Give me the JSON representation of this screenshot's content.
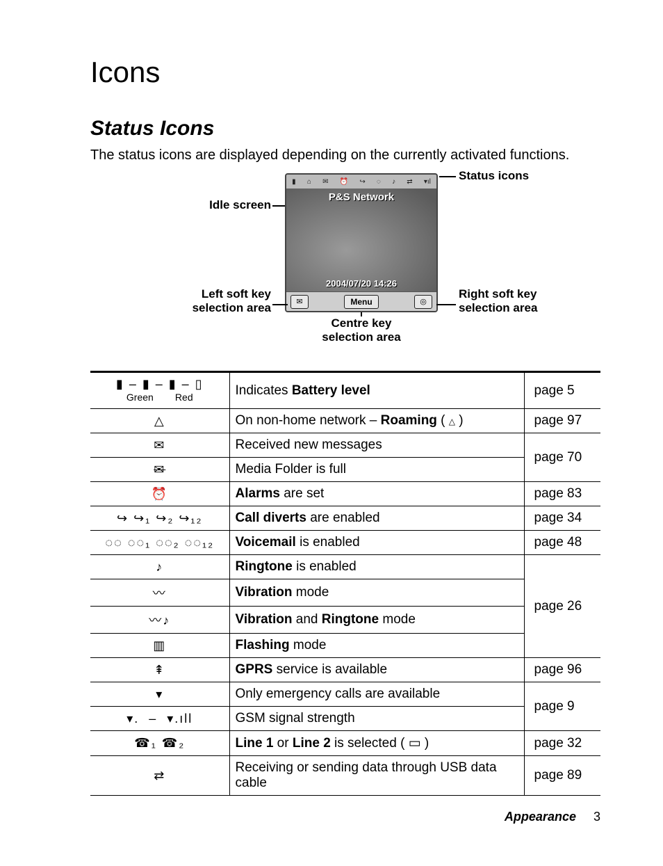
{
  "title": "Icons",
  "subtitle": "Status Icons",
  "intro": "The status icons are displayed depending on the currently activated functions.",
  "diagram": {
    "callout_status": "Status icons",
    "callout_idle": "Idle screen",
    "callout_leftkey_l1": "Left soft key",
    "callout_leftkey_l2": "selection area",
    "callout_rightkey_l1": "Right soft key",
    "callout_rightkey_l2": "selection area",
    "callout_centre_l1": "Centre key",
    "callout_centre_l2": "selection area",
    "phone_network": "P&S Network",
    "phone_date": "2004/07/20 14:26",
    "phone_menu": "Menu"
  },
  "rows": [
    {
      "icon_html": "<span class='glyph'>▮ – ▮ – ▮ – ▯</span><br><span style='font-size:14px;'>Green&nbsp;&nbsp;&nbsp;&nbsp;&nbsp;&nbsp;&nbsp;&nbsp;Red</span>",
      "desc_html": "Indicates <span class='bold'>Battery level</span>",
      "page": "page 5"
    },
    {
      "icon_html": "<span class='glyph'>△</span>",
      "desc_html": "On non-home network – <span class='bold'>Roaming</span> (&nbsp;<span style='font-size:12px;'>△</span>&nbsp;)",
      "page": "page 97"
    },
    {
      "icon_html": "<span class='glyph'>✉</span>",
      "desc_html": "Received new messages",
      "page": "page 70",
      "page_rowspan": 2
    },
    {
      "icon_html": "<span class='glyph' style='text-decoration:line-through;'>✉</span>",
      "desc_html": "Media Folder is full"
    },
    {
      "icon_html": "<span class='glyph'>⏰</span>",
      "desc_html": "<span class='bold'>Alarms</span> are set",
      "page": "page 83"
    },
    {
      "icon_html": "<span class='glyph'>↪ ↪₁ ↪₂ ↪₁₂</span>",
      "desc_html": "<span class='bold'>Call diverts</span> are enabled",
      "page": "page 34"
    },
    {
      "icon_html": "<span class='glyph'>◌◌ ◌◌₁ ◌◌₂ ◌◌₁₂</span>",
      "desc_html": "<span class='bold'>Voicemail</span> is enabled",
      "page": "page 48"
    },
    {
      "icon_html": "<span class='glyph'>♪</span>",
      "desc_html": "<span class='bold'>Ringtone</span> is enabled",
      "page": "page 26",
      "page_rowspan": 4
    },
    {
      "icon_html": "<span class='glyph'>〰</span>",
      "desc_html": "<span class='bold'>Vibration</span> mode"
    },
    {
      "icon_html": "<span class='glyph'>〰♪</span>",
      "desc_html": "<span class='bold'>Vibration</span> and <span class='bold'>Ringtone</span> mode"
    },
    {
      "icon_html": "<span class='glyph'>▥</span>",
      "desc_html": "<span class='bold'>Flashing</span> mode"
    },
    {
      "icon_html": "<span class='glyph'>⇞</span>",
      "desc_html": "<span class='bold'>GPRS</span> service is available",
      "page": "page 96"
    },
    {
      "icon_html": "<span class='glyph'>▾</span>",
      "desc_html": "Only emergency calls are available",
      "page": "page 9",
      "page_rowspan": 2
    },
    {
      "icon_html": "<span class='glyph'>▾.&nbsp;&nbsp;–&nbsp;&nbsp;▾.ıll</span>",
      "desc_html": "GSM signal strength"
    },
    {
      "icon_html": "<span class='glyph'>☎₁ ☎₂</span>",
      "desc_html": "<span class='bold'>Line 1</span> or <span class='bold'>Line 2</span> is selected (&nbsp;▭&nbsp;)",
      "page": "page 32"
    },
    {
      "icon_html": "<span class='glyph'>⇄</span>",
      "desc_html": "Receiving or sending data through USB data cable",
      "page": "page 89"
    }
  ],
  "footer_section": "Appearance",
  "footer_page": "3"
}
